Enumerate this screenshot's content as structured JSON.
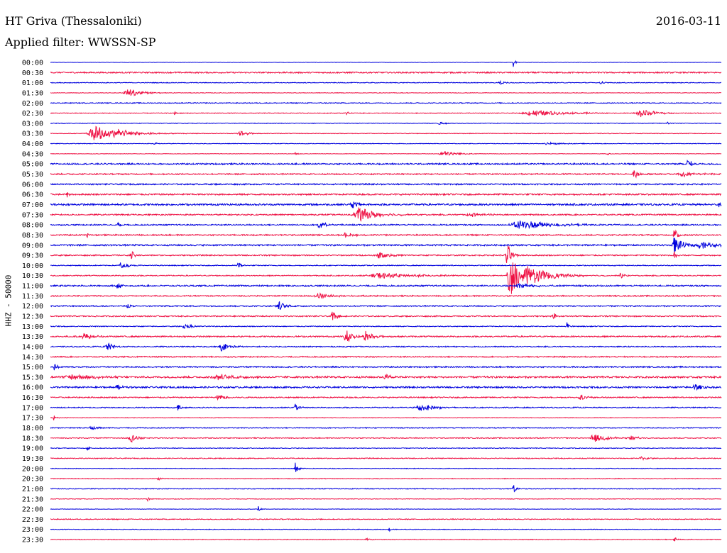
{
  "header": {
    "station": "HT Griva (Thessaloniki)",
    "date": "2016-03-11",
    "filter": "Applied filter: WWSSN-SP"
  },
  "channel_label": "HHZ - 50000",
  "colors": {
    "trace_a": "#0000dd",
    "trace_b": "#ee1144"
  },
  "chart_data": {
    "type": "line",
    "title": "HT Griva (Thessaloniki)",
    "subtitle": "Applied filter: WWSSN-SP",
    "ylabel": "HHZ - 50000",
    "xlabel": "",
    "grid": false,
    "legend": "none",
    "series_note_colors": "alternating blue/red per 30-minute line",
    "rows": [
      {
        "time": "00:00",
        "color": "blue",
        "noise": 0.25,
        "events": [
          {
            "pos": 0.69,
            "amp": 7,
            "width": 0.003
          }
        ]
      },
      {
        "time": "00:30",
        "color": "red",
        "noise": 0.9,
        "events": []
      },
      {
        "time": "01:00",
        "color": "blue",
        "noise": 0.5,
        "events": [
          {
            "pos": 0.67,
            "amp": 3,
            "width": 0.008
          },
          {
            "pos": 0.82,
            "amp": 2,
            "width": 0.006
          }
        ]
      },
      {
        "time": "01:30",
        "color": "red",
        "noise": 0.35,
        "events": [
          {
            "pos": 0.115,
            "amp": 6,
            "width": 0.02
          }
        ]
      },
      {
        "time": "02:00",
        "color": "blue",
        "noise": 0.6,
        "events": []
      },
      {
        "time": "02:30",
        "color": "red",
        "noise": 0.5,
        "events": [
          {
            "pos": 0.185,
            "amp": 3,
            "width": 0.004
          },
          {
            "pos": 0.44,
            "amp": 3,
            "width": 0.004
          },
          {
            "pos": 0.72,
            "amp": 4,
            "width": 0.05
          },
          {
            "pos": 0.88,
            "amp": 6,
            "width": 0.02
          }
        ]
      },
      {
        "time": "03:00",
        "color": "blue",
        "noise": 0.4,
        "events": [
          {
            "pos": 0.58,
            "amp": 2,
            "width": 0.01
          },
          {
            "pos": 0.92,
            "amp": 2,
            "width": 0.004
          }
        ]
      },
      {
        "time": "03:30",
        "color": "red",
        "noise": 0.4,
        "events": [
          {
            "pos": 0.065,
            "amp": 11,
            "width": 0.03
          },
          {
            "pos": 0.1,
            "amp": 5,
            "width": 0.03
          },
          {
            "pos": 0.282,
            "amp": 5,
            "width": 0.01
          }
        ]
      },
      {
        "time": "04:00",
        "color": "blue",
        "noise": 0.4,
        "events": [
          {
            "pos": 0.155,
            "amp": 3,
            "width": 0.003
          },
          {
            "pos": 0.74,
            "amp": 2,
            "width": 0.02
          }
        ]
      },
      {
        "time": "04:30",
        "color": "red",
        "noise": 0.3,
        "events": [
          {
            "pos": 0.365,
            "amp": 3,
            "width": 0.003
          },
          {
            "pos": 0.585,
            "amp": 4,
            "width": 0.02
          },
          {
            "pos": 0.83,
            "amp": 2,
            "width": 0.003
          }
        ]
      },
      {
        "time": "05:00",
        "color": "blue",
        "noise": 1.0,
        "events": [
          {
            "pos": 0.95,
            "amp": 8,
            "width": 0.005
          }
        ]
      },
      {
        "time": "05:30",
        "color": "red",
        "noise": 0.9,
        "events": [
          {
            "pos": 0.87,
            "amp": 7,
            "width": 0.006
          },
          {
            "pos": 0.94,
            "amp": 4,
            "width": 0.02
          }
        ]
      },
      {
        "time": "06:00",
        "color": "blue",
        "noise": 0.9,
        "events": []
      },
      {
        "time": "06:30",
        "color": "red",
        "noise": 1.0,
        "events": [
          {
            "pos": 0.025,
            "amp": 5,
            "width": 0.003
          }
        ]
      },
      {
        "time": "07:00",
        "color": "blue",
        "noise": 1.2,
        "events": [
          {
            "pos": 0.45,
            "amp": 5,
            "width": 0.01
          },
          {
            "pos": 0.995,
            "amp": 4,
            "width": 0.003
          }
        ]
      },
      {
        "time": "07:30",
        "color": "red",
        "noise": 0.9,
        "events": [
          {
            "pos": 0.46,
            "amp": 10,
            "width": 0.025
          },
          {
            "pos": 0.625,
            "amp": 3,
            "width": 0.02
          }
        ]
      },
      {
        "time": "08:00",
        "color": "blue",
        "noise": 0.9,
        "events": [
          {
            "pos": 0.1,
            "amp": 5,
            "width": 0.004
          },
          {
            "pos": 0.4,
            "amp": 5,
            "width": 0.01
          },
          {
            "pos": 0.7,
            "amp": 7,
            "width": 0.04
          }
        ]
      },
      {
        "time": "08:30",
        "color": "red",
        "noise": 0.9,
        "events": [
          {
            "pos": 0.055,
            "amp": 4,
            "width": 0.003
          },
          {
            "pos": 0.44,
            "amp": 4,
            "width": 0.01
          },
          {
            "pos": 0.93,
            "amp": 10,
            "width": 0.005
          }
        ]
      },
      {
        "time": "09:00",
        "color": "blue",
        "noise": 1.0,
        "events": [
          {
            "pos": 0.93,
            "amp": 14,
            "width": 0.01
          },
          {
            "pos": 0.97,
            "amp": 5,
            "width": 0.02
          }
        ]
      },
      {
        "time": "09:30",
        "color": "red",
        "noise": 0.8,
        "events": [
          {
            "pos": 0.12,
            "amp": 9,
            "width": 0.004
          },
          {
            "pos": 0.49,
            "amp": 5,
            "width": 0.015
          },
          {
            "pos": 0.68,
            "amp": 20,
            "width": 0.006
          },
          {
            "pos": 0.93,
            "amp": 6,
            "width": 0.004
          }
        ]
      },
      {
        "time": "10:00",
        "color": "blue",
        "noise": 0.6,
        "events": [
          {
            "pos": 0.105,
            "amp": 5,
            "width": 0.01
          },
          {
            "pos": 0.28,
            "amp": 6,
            "width": 0.004
          }
        ]
      },
      {
        "time": "10:30",
        "color": "red",
        "noise": 0.7,
        "events": [
          {
            "pos": 0.49,
            "amp": 4,
            "width": 0.05
          },
          {
            "pos": 0.685,
            "amp": 34,
            "width": 0.012
          },
          {
            "pos": 0.71,
            "amp": 14,
            "width": 0.03
          },
          {
            "pos": 0.85,
            "amp": 6,
            "width": 0.004
          }
        ]
      },
      {
        "time": "11:00",
        "color": "blue",
        "noise": 1.0,
        "events": [
          {
            "pos": 0.1,
            "amp": 4,
            "width": 0.01
          },
          {
            "pos": 0.7,
            "amp": 4,
            "width": 0.02
          }
        ]
      },
      {
        "time": "11:30",
        "color": "red",
        "noise": 0.8,
        "events": [
          {
            "pos": 0.4,
            "amp": 4,
            "width": 0.02
          }
        ]
      },
      {
        "time": "12:00",
        "color": "blue",
        "noise": 0.8,
        "events": [
          {
            "pos": 0.115,
            "amp": 5,
            "width": 0.004
          },
          {
            "pos": 0.34,
            "amp": 7,
            "width": 0.01
          }
        ]
      },
      {
        "time": "12:30",
        "color": "red",
        "noise": 0.8,
        "events": [
          {
            "pos": 0.42,
            "amp": 8,
            "width": 0.006
          },
          {
            "pos": 0.75,
            "amp": 5,
            "width": 0.004
          }
        ]
      },
      {
        "time": "13:00",
        "color": "blue",
        "noise": 0.6,
        "events": [
          {
            "pos": 0.2,
            "amp": 4,
            "width": 0.01
          },
          {
            "pos": 0.77,
            "amp": 6,
            "width": 0.003
          }
        ]
      },
      {
        "time": "13:30",
        "color": "red",
        "noise": 0.9,
        "events": [
          {
            "pos": 0.05,
            "amp": 6,
            "width": 0.01
          },
          {
            "pos": 0.44,
            "amp": 12,
            "width": 0.008
          },
          {
            "pos": 0.47,
            "amp": 9,
            "width": 0.01
          }
        ]
      },
      {
        "time": "14:00",
        "color": "blue",
        "noise": 0.7,
        "events": [
          {
            "pos": 0.085,
            "amp": 6,
            "width": 0.01
          },
          {
            "pos": 0.255,
            "amp": 6,
            "width": 0.012
          }
        ]
      },
      {
        "time": "14:30",
        "color": "red",
        "noise": 0.8,
        "events": []
      },
      {
        "time": "15:00",
        "color": "blue",
        "noise": 0.9,
        "events": [
          {
            "pos": 0.005,
            "amp": 6,
            "width": 0.004
          }
        ]
      },
      {
        "time": "15:30",
        "color": "red",
        "noise": 1.2,
        "events": [
          {
            "pos": 0.03,
            "amp": 4,
            "width": 0.03
          },
          {
            "pos": 0.25,
            "amp": 4,
            "width": 0.03
          },
          {
            "pos": 0.5,
            "amp": 4,
            "width": 0.01
          }
        ]
      },
      {
        "time": "16:00",
        "color": "blue",
        "noise": 1.1,
        "events": [
          {
            "pos": 0.1,
            "amp": 5,
            "width": 0.01
          },
          {
            "pos": 0.96,
            "amp": 5,
            "width": 0.01
          }
        ]
      },
      {
        "time": "16:30",
        "color": "red",
        "noise": 0.8,
        "events": [
          {
            "pos": 0.25,
            "amp": 5,
            "width": 0.01
          },
          {
            "pos": 0.79,
            "amp": 4,
            "width": 0.01
          }
        ]
      },
      {
        "time": "17:00",
        "color": "blue",
        "noise": 0.7,
        "events": [
          {
            "pos": 0.19,
            "amp": 6,
            "width": 0.004
          },
          {
            "pos": 0.365,
            "amp": 8,
            "width": 0.004
          },
          {
            "pos": 0.55,
            "amp": 6,
            "width": 0.02
          }
        ]
      },
      {
        "time": "17:30",
        "color": "red",
        "noise": 0.4,
        "events": [
          {
            "pos": 0.005,
            "amp": 4,
            "width": 0.003
          }
        ]
      },
      {
        "time": "18:00",
        "color": "blue",
        "noise": 0.6,
        "events": [
          {
            "pos": 0.06,
            "amp": 3,
            "width": 0.01
          }
        ]
      },
      {
        "time": "18:30",
        "color": "red",
        "noise": 0.6,
        "events": [
          {
            "pos": 0.12,
            "amp": 6,
            "width": 0.01
          },
          {
            "pos": 0.81,
            "amp": 6,
            "width": 0.02
          },
          {
            "pos": 0.865,
            "amp": 4,
            "width": 0.01
          }
        ]
      },
      {
        "time": "19:00",
        "color": "blue",
        "noise": 0.5,
        "events": [
          {
            "pos": 0.055,
            "amp": 4,
            "width": 0.003
          }
        ]
      },
      {
        "time": "19:30",
        "color": "red",
        "noise": 0.6,
        "events": [
          {
            "pos": 0.88,
            "amp": 3,
            "width": 0.01
          }
        ]
      },
      {
        "time": "20:00",
        "color": "blue",
        "noise": 0.4,
        "events": [
          {
            "pos": 0.365,
            "amp": 9,
            "width": 0.004
          }
        ]
      },
      {
        "time": "20:30",
        "color": "red",
        "noise": 0.5,
        "events": [
          {
            "pos": 0.16,
            "amp": 4,
            "width": 0.003
          }
        ]
      },
      {
        "time": "21:00",
        "color": "blue",
        "noise": 0.5,
        "events": [
          {
            "pos": 0.69,
            "amp": 6,
            "width": 0.004
          }
        ]
      },
      {
        "time": "21:30",
        "color": "red",
        "noise": 0.4,
        "events": [
          {
            "pos": 0.145,
            "amp": 4,
            "width": 0.003
          }
        ]
      },
      {
        "time": "22:00",
        "color": "blue",
        "noise": 0.3,
        "events": [
          {
            "pos": 0.31,
            "amp": 5,
            "width": 0.003
          }
        ]
      },
      {
        "time": "22:30",
        "color": "red",
        "noise": 0.6,
        "events": []
      },
      {
        "time": "23:00",
        "color": "blue",
        "noise": 0.4,
        "events": [
          {
            "pos": 0.505,
            "amp": 3,
            "width": 0.003
          }
        ]
      },
      {
        "time": "23:30",
        "color": "red",
        "noise": 0.5,
        "events": [
          {
            "pos": 0.47,
            "amp": 3,
            "width": 0.005
          },
          {
            "pos": 0.93,
            "amp": 4,
            "width": 0.003
          }
        ]
      }
    ]
  }
}
